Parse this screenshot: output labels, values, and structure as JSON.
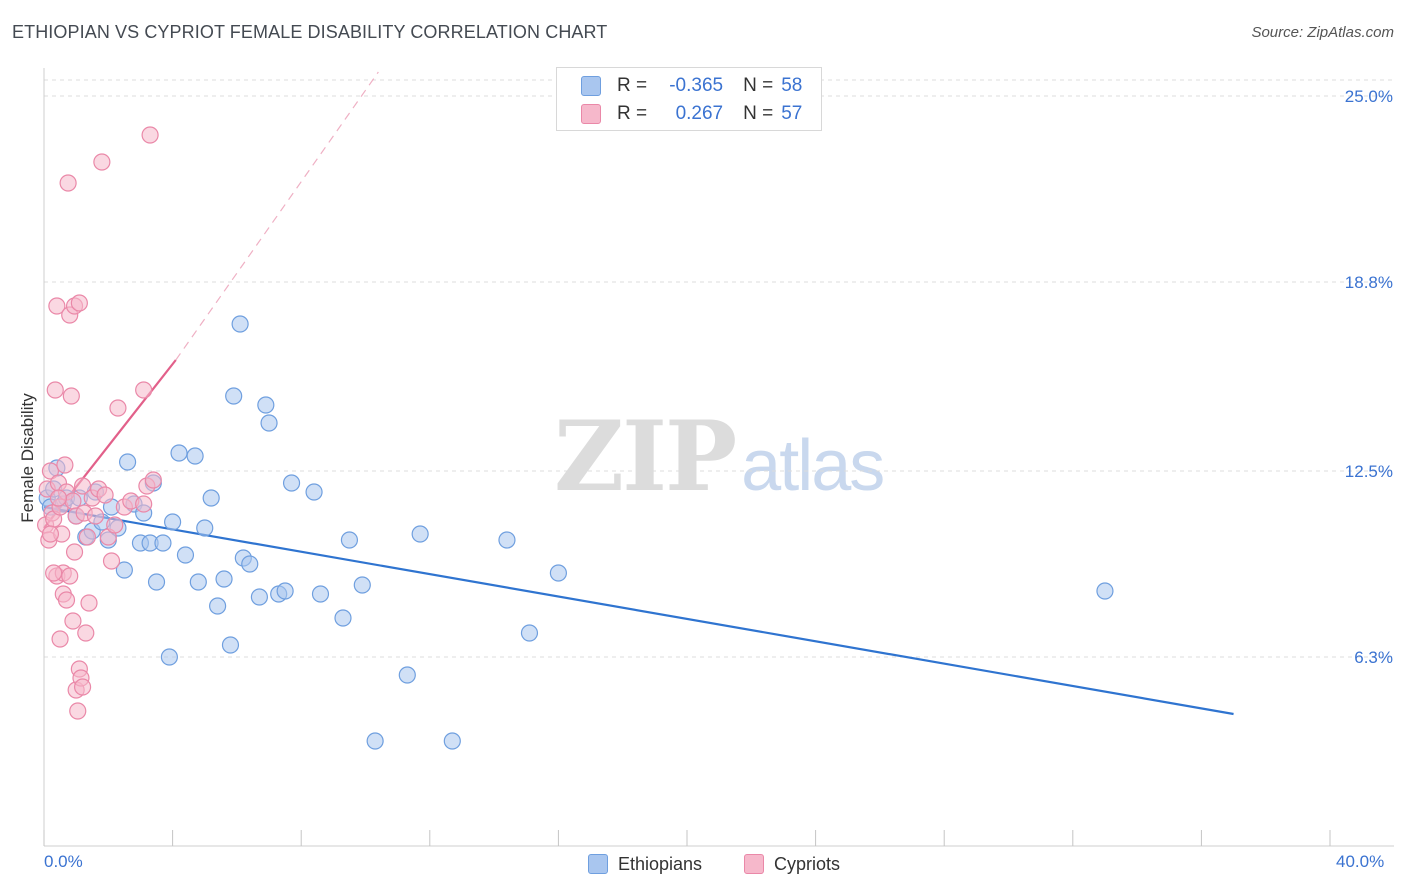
{
  "title": "ETHIOPIAN VS CYPRIOT FEMALE DISABILITY CORRELATION CHART",
  "source": "Source: ZipAtlas.com",
  "watermark": {
    "zip": "ZIP",
    "atlas": "atlas"
  },
  "legend": {
    "rows": [
      {
        "r_label": "R =",
        "r_value": "-0.365",
        "n_label": "N =",
        "n_value": "58"
      },
      {
        "r_label": "R =",
        "r_value": "0.267",
        "n_label": "N =",
        "n_value": "57"
      }
    ]
  },
  "bottom_legend": {
    "series1": "Ethiopians",
    "series2": "Cypriots"
  },
  "x_axis": {
    "min_label": "0.0%",
    "max_label": "40.0%"
  },
  "colors": {
    "blue_fill": "#a9c6ef",
    "blue_stroke": "#6f9fdf",
    "blue_line": "#2f74d0",
    "pink_fill": "#f6b8cb",
    "pink_stroke": "#ea88a8",
    "pink_line": "#e2608a",
    "grid": "#dcdcdc",
    "axis_label": "#3b73d1"
  },
  "chart_data": {
    "type": "scatter",
    "title": "ETHIOPIAN VS CYPRIOT FEMALE DISABILITY CORRELATION CHART",
    "xlabel": "",
    "ylabel": "Female Disability",
    "xlim": [
      0,
      40
    ],
    "ylim": [
      0,
      25.8
    ],
    "y_ticks": [
      {
        "value": 6.3,
        "label": "6.3%"
      },
      {
        "value": 12.5,
        "label": "12.5%"
      },
      {
        "value": 18.8,
        "label": "18.8%"
      },
      {
        "value": 25.0,
        "label": "25.0%"
      }
    ],
    "x_tick_values": [
      0,
      4,
      8,
      12,
      16,
      20,
      24,
      28,
      32,
      36,
      40
    ],
    "series": [
      {
        "name": "Ethiopians",
        "color": "blue",
        "R": -0.365,
        "N": 58,
        "trend": {
          "x": [
            0,
            37
          ],
          "y": [
            11.3,
            4.4
          ],
          "style": "solid"
        },
        "points": [
          [
            0.1,
            11.6
          ],
          [
            0.2,
            11.3
          ],
          [
            0.3,
            11.9
          ],
          [
            0.4,
            12.6
          ],
          [
            0.6,
            11.4
          ],
          [
            0.7,
            11.6
          ],
          [
            1.0,
            11.0
          ],
          [
            1.1,
            11.6
          ],
          [
            1.3,
            10.3
          ],
          [
            1.5,
            10.5
          ],
          [
            1.6,
            11.8
          ],
          [
            1.8,
            10.8
          ],
          [
            2.0,
            10.2
          ],
          [
            2.1,
            11.3
          ],
          [
            2.3,
            10.6
          ],
          [
            2.5,
            9.2
          ],
          [
            2.6,
            12.8
          ],
          [
            2.8,
            11.4
          ],
          [
            3.0,
            10.1
          ],
          [
            3.1,
            11.1
          ],
          [
            3.3,
            10.1
          ],
          [
            3.4,
            12.1
          ],
          [
            3.5,
            8.8
          ],
          [
            3.7,
            10.1
          ],
          [
            3.9,
            6.3
          ],
          [
            4.0,
            10.8
          ],
          [
            4.2,
            13.1
          ],
          [
            4.4,
            9.7
          ],
          [
            4.7,
            13.0
          ],
          [
            4.8,
            8.8
          ],
          [
            5.0,
            10.6
          ],
          [
            5.2,
            11.6
          ],
          [
            5.4,
            8.0
          ],
          [
            5.6,
            8.9
          ],
          [
            5.8,
            6.7
          ],
          [
            5.9,
            15.0
          ],
          [
            6.1,
            17.4
          ],
          [
            6.2,
            9.6
          ],
          [
            6.4,
            9.4
          ],
          [
            6.7,
            8.3
          ],
          [
            6.9,
            14.7
          ],
          [
            7.0,
            14.1
          ],
          [
            7.3,
            8.4
          ],
          [
            7.5,
            8.5
          ],
          [
            7.7,
            12.1
          ],
          [
            8.4,
            11.8
          ],
          [
            8.6,
            8.4
          ],
          [
            9.3,
            7.6
          ],
          [
            9.5,
            10.2
          ],
          [
            9.9,
            8.7
          ],
          [
            10.3,
            3.5
          ],
          [
            11.3,
            5.7
          ],
          [
            11.7,
            10.4
          ],
          [
            12.7,
            3.5
          ],
          [
            14.4,
            10.2
          ],
          [
            15.1,
            7.1
          ],
          [
            16.0,
            9.1
          ],
          [
            33.0,
            8.5
          ]
        ]
      },
      {
        "name": "Cypriots",
        "color": "pink",
        "R": 0.267,
        "N": 57,
        "trend": {
          "x": [
            0,
            4.1
          ],
          "y": [
            10.6,
            16.2
          ],
          "style": "solid",
          "extension": {
            "x": [
              4.1,
              10.4
            ],
            "y": [
              16.2,
              25.8
            ],
            "style": "dashed"
          }
        },
        "points": [
          [
            0.05,
            10.7
          ],
          [
            0.1,
            11.9
          ],
          [
            0.15,
            10.2
          ],
          [
            0.2,
            12.5
          ],
          [
            0.25,
            11.1
          ],
          [
            0.3,
            10.9
          ],
          [
            0.35,
            15.2
          ],
          [
            0.4,
            18.0
          ],
          [
            0.4,
            9.0
          ],
          [
            0.45,
            12.1
          ],
          [
            0.5,
            11.3
          ],
          [
            0.5,
            6.9
          ],
          [
            0.55,
            10.4
          ],
          [
            0.6,
            9.1
          ],
          [
            0.6,
            8.4
          ],
          [
            0.65,
            12.7
          ],
          [
            0.7,
            11.8
          ],
          [
            0.7,
            8.2
          ],
          [
            0.75,
            22.1
          ],
          [
            0.8,
            9.0
          ],
          [
            0.8,
            17.7
          ],
          [
            0.85,
            15.0
          ],
          [
            0.9,
            11.5
          ],
          [
            0.9,
            7.5
          ],
          [
            0.95,
            9.8
          ],
          [
            0.95,
            18.0
          ],
          [
            1.0,
            5.2
          ],
          [
            1.0,
            11.0
          ],
          [
            1.05,
            4.5
          ],
          [
            1.1,
            5.9
          ],
          [
            1.1,
            18.1
          ],
          [
            1.15,
            5.6
          ],
          [
            1.2,
            12.0
          ],
          [
            1.2,
            5.3
          ],
          [
            1.25,
            11.1
          ],
          [
            1.3,
            7.1
          ],
          [
            1.35,
            10.3
          ],
          [
            1.4,
            8.1
          ],
          [
            1.5,
            11.6
          ],
          [
            1.6,
            11.0
          ],
          [
            1.7,
            11.9
          ],
          [
            1.8,
            22.8
          ],
          [
            1.9,
            11.7
          ],
          [
            2.0,
            10.3
          ],
          [
            2.1,
            9.5
          ],
          [
            2.2,
            10.7
          ],
          [
            2.3,
            14.6
          ],
          [
            2.5,
            11.3
          ],
          [
            2.7,
            11.5
          ],
          [
            3.1,
            11.4
          ],
          [
            3.1,
            15.2
          ],
          [
            3.2,
            12.0
          ],
          [
            3.3,
            23.7
          ],
          [
            3.4,
            12.2
          ],
          [
            0.2,
            10.4
          ],
          [
            0.45,
            11.6
          ],
          [
            0.3,
            9.1
          ]
        ]
      }
    ],
    "legend_position": "top-center",
    "grid": true
  }
}
